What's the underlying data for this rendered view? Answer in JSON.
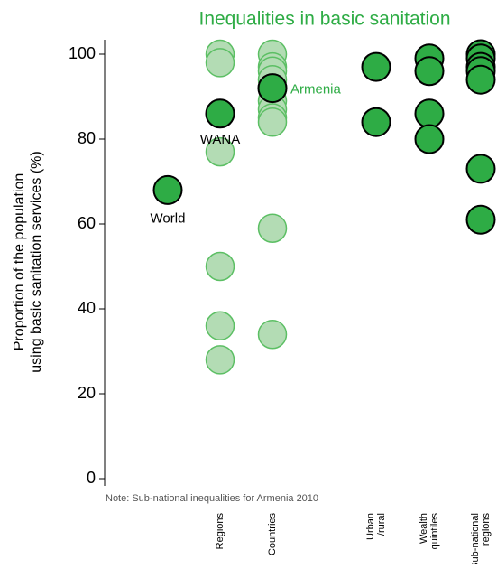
{
  "chart_data": {
    "type": "strip",
    "title": "Inequalities in basic sanitation",
    "title_color": "#2eac45",
    "ylabel": [
      "Proportion of the population",
      "using basic sanitation services (%)"
    ],
    "note": "Note: Sub-national inequalities for Armenia  2010",
    "categories": [
      null,
      [
        "Regions"
      ],
      [
        "Countries"
      ],
      [
        "Urban",
        "/rural"
      ],
      [
        "Wealth",
        "quintiles"
      ],
      [
        "Sub-national",
        "regions"
      ]
    ],
    "ylim": [
      0,
      100
    ],
    "yticks": [
      0,
      20,
      40,
      60,
      80,
      100
    ],
    "series": [
      {
        "color": "#b3dcb4",
        "stroke": "#5cbf64",
        "values": [
          [],
          [
            100,
            98,
            86,
            77,
            50,
            36,
            28
          ],
          [
            100,
            97,
            96,
            94,
            92,
            89,
            87,
            85,
            84,
            59,
            34
          ],
          [],
          [],
          []
        ]
      },
      {
        "color": "#2eac45",
        "stroke": "#000000",
        "values": [
          [
            68
          ],
          [
            86
          ],
          [
            92
          ],
          [
            97,
            84
          ],
          [
            99,
            96,
            86,
            80
          ],
          [
            100,
            99,
            97,
            96,
            94,
            73,
            61
          ]
        ]
      }
    ],
    "annotations": [
      {
        "text": "World",
        "color": "#000000"
      },
      {
        "text": "WANA",
        "color": "#000000"
      },
      {
        "text": "Armenia",
        "color": "#2eac45"
      }
    ]
  }
}
